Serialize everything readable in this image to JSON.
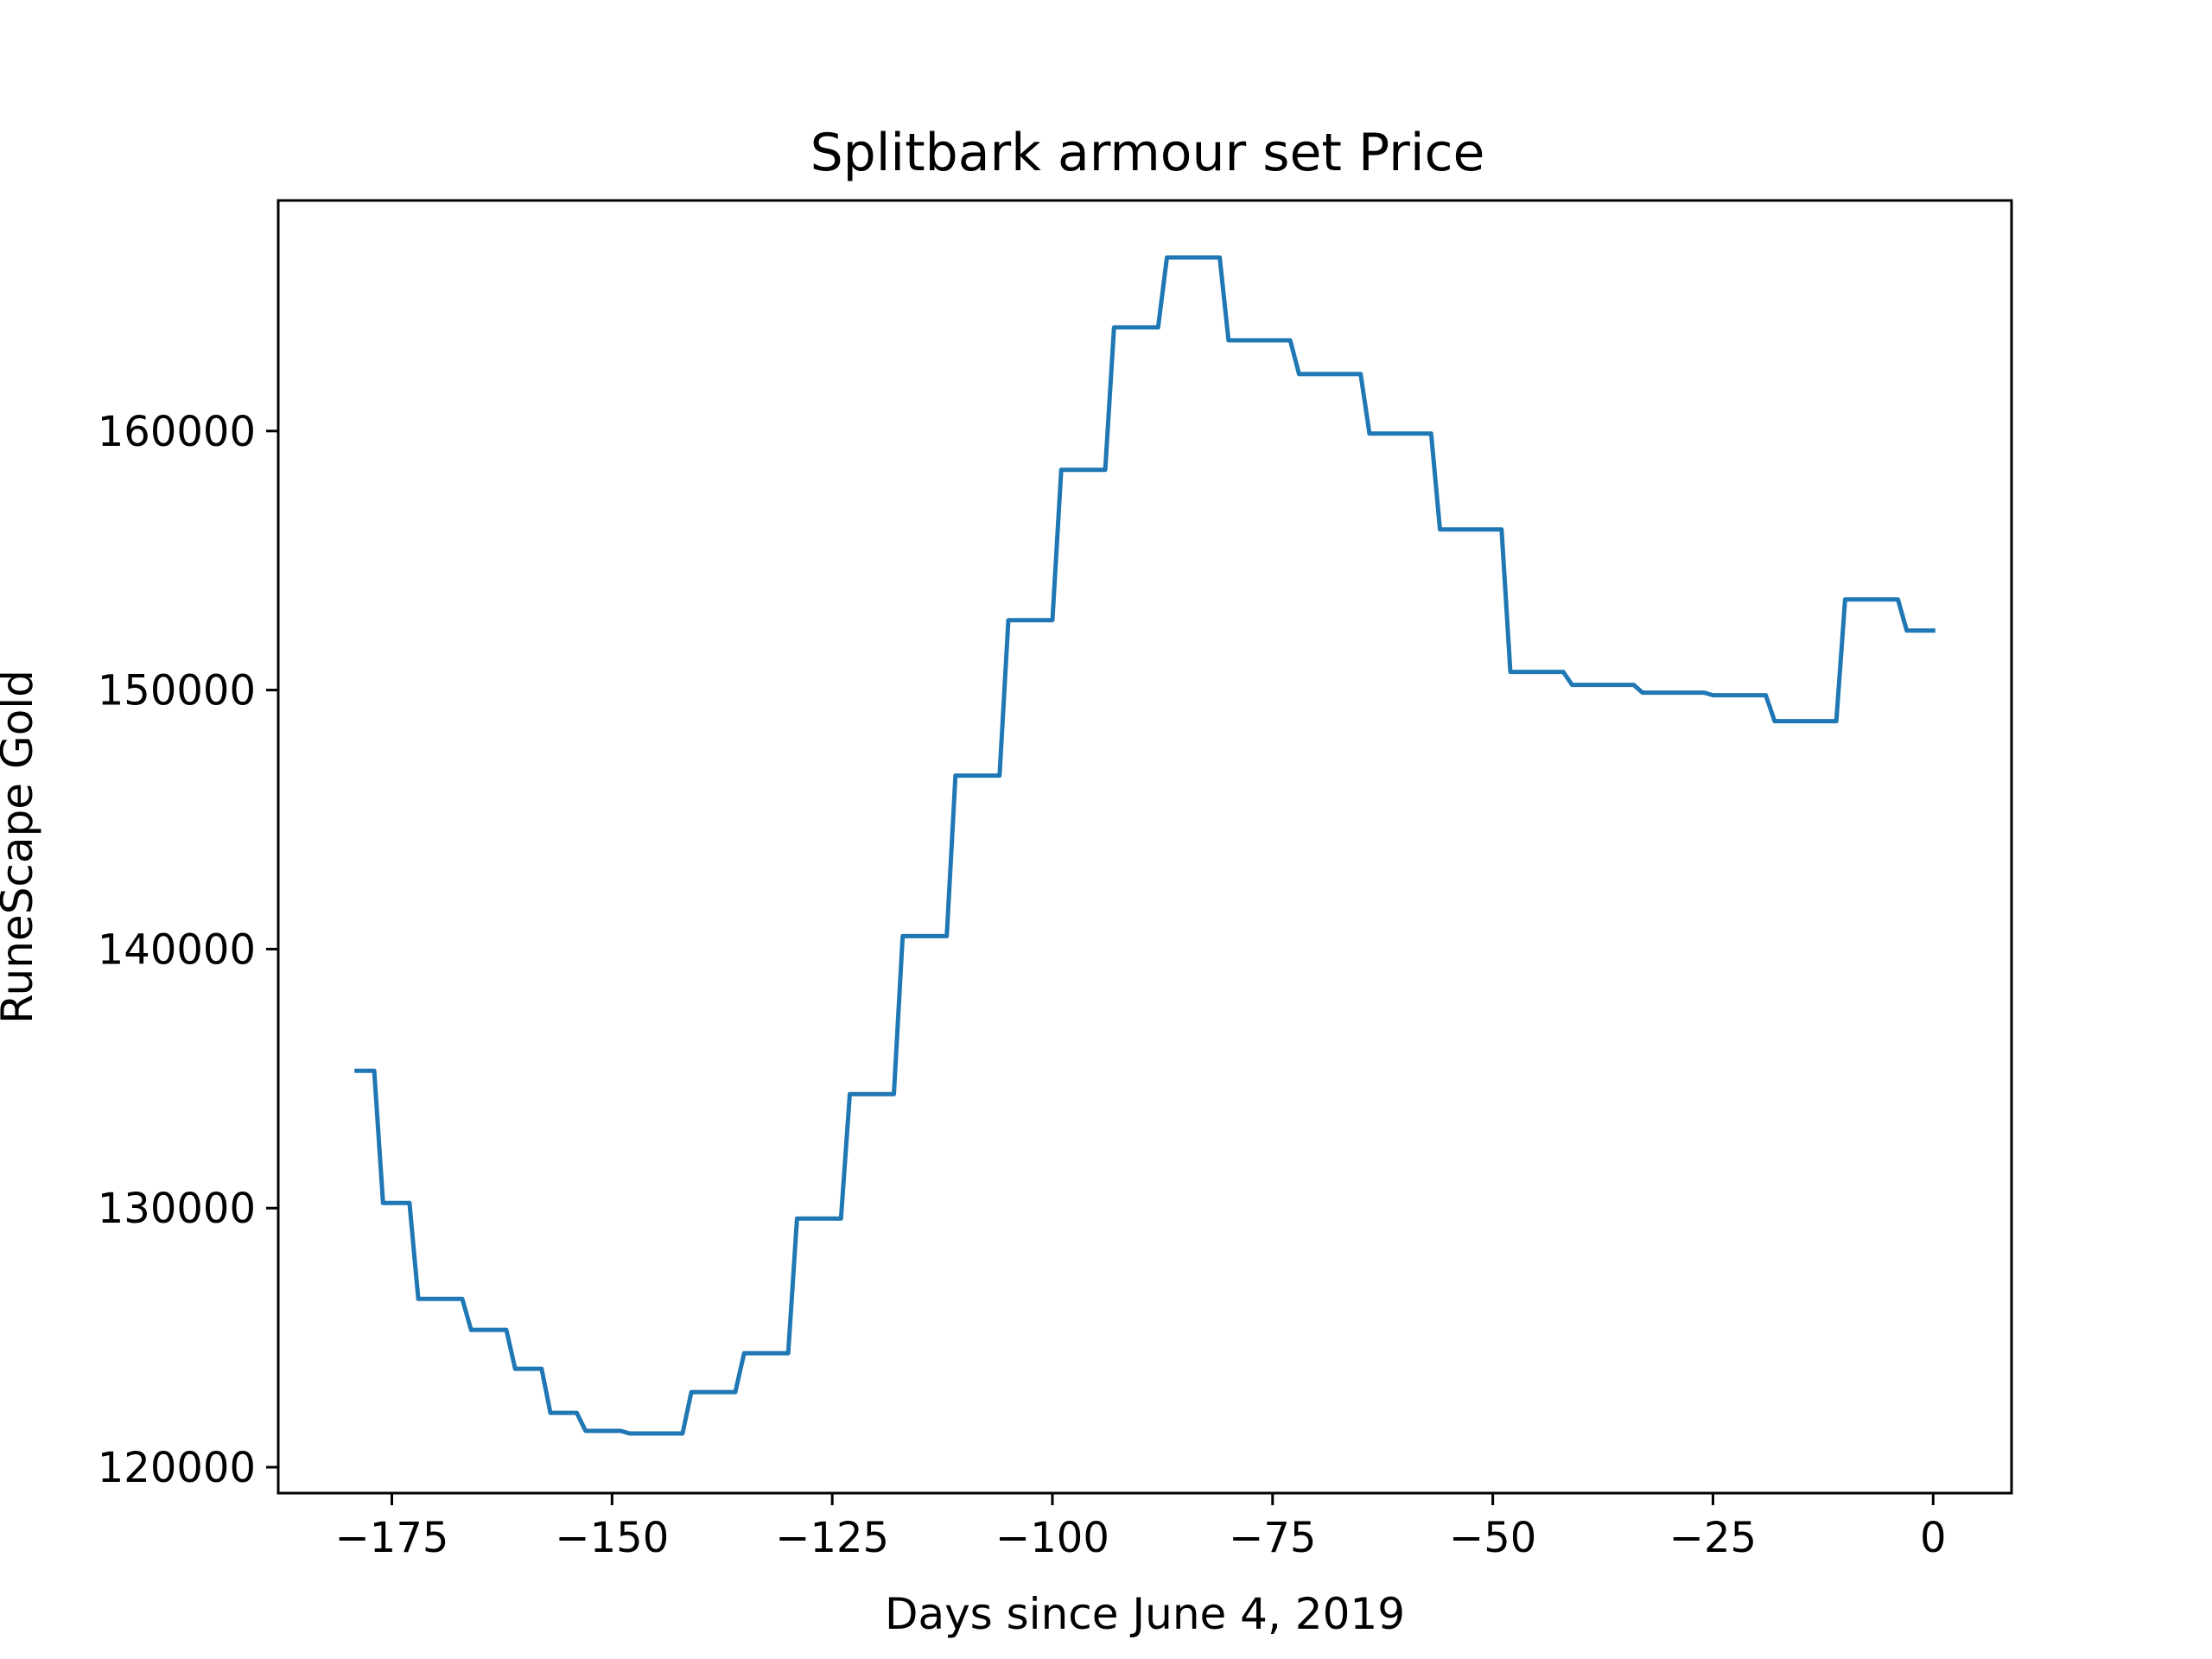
{
  "chart_data": {
    "type": "line",
    "title": "Splitbark armour set Price",
    "xlabel": "Days since June 4, 2019",
    "ylabel": "RuneScape Gold",
    "xlim": [
      -187.9,
      8.9
    ],
    "ylim": [
      119000,
      168900
    ],
    "xticks": [
      -175,
      -150,
      -125,
      -100,
      -75,
      -50,
      -25,
      0
    ],
    "xtick_labels": [
      "−175",
      "−150",
      "−125",
      "−100",
      "−75",
      "−50",
      "−25",
      "0"
    ],
    "yticks": [
      120000,
      130000,
      140000,
      150000,
      160000
    ],
    "ytick_labels": [
      "120000",
      "130000",
      "140000",
      "150000",
      "160000"
    ],
    "grid": false,
    "series": [
      {
        "color": "#1f77b4",
        "x": [
          -179,
          -177,
          -176,
          -173,
          -172,
          -167,
          -166,
          -162,
          -161,
          -158,
          -157,
          -154,
          -153,
          -149,
          -148,
          -142,
          -141,
          -136,
          -135,
          -130,
          -129,
          -124,
          -123,
          -118,
          -117,
          -112,
          -111,
          -106,
          -105,
          -100,
          -99,
          -94,
          -93,
          -88,
          -87,
          -81,
          -80,
          -73,
          -72,
          -65,
          -64,
          -57,
          -56,
          -49,
          -48,
          -42,
          -41,
          -34,
          -33,
          -26,
          -25,
          -19,
          -18,
          -11,
          -10,
          -4,
          -3,
          0
        ],
        "y": [
          135300,
          135300,
          130200,
          130200,
          126500,
          126500,
          125300,
          125300,
          123800,
          123800,
          122100,
          122100,
          121400,
          121400,
          121300,
          121300,
          122900,
          122900,
          124400,
          124400,
          129600,
          129600,
          134400,
          134400,
          140500,
          140500,
          146700,
          146700,
          152700,
          152700,
          158500,
          158500,
          164000,
          164000,
          166700,
          166700,
          163500,
          163500,
          162200,
          162200,
          159900,
          159900,
          156200,
          156200,
          150700,
          150700,
          150200,
          150200,
          149900,
          149900,
          149800,
          149800,
          148800,
          148800,
          153500,
          153500,
          152300,
          152300
        ]
      }
    ]
  }
}
